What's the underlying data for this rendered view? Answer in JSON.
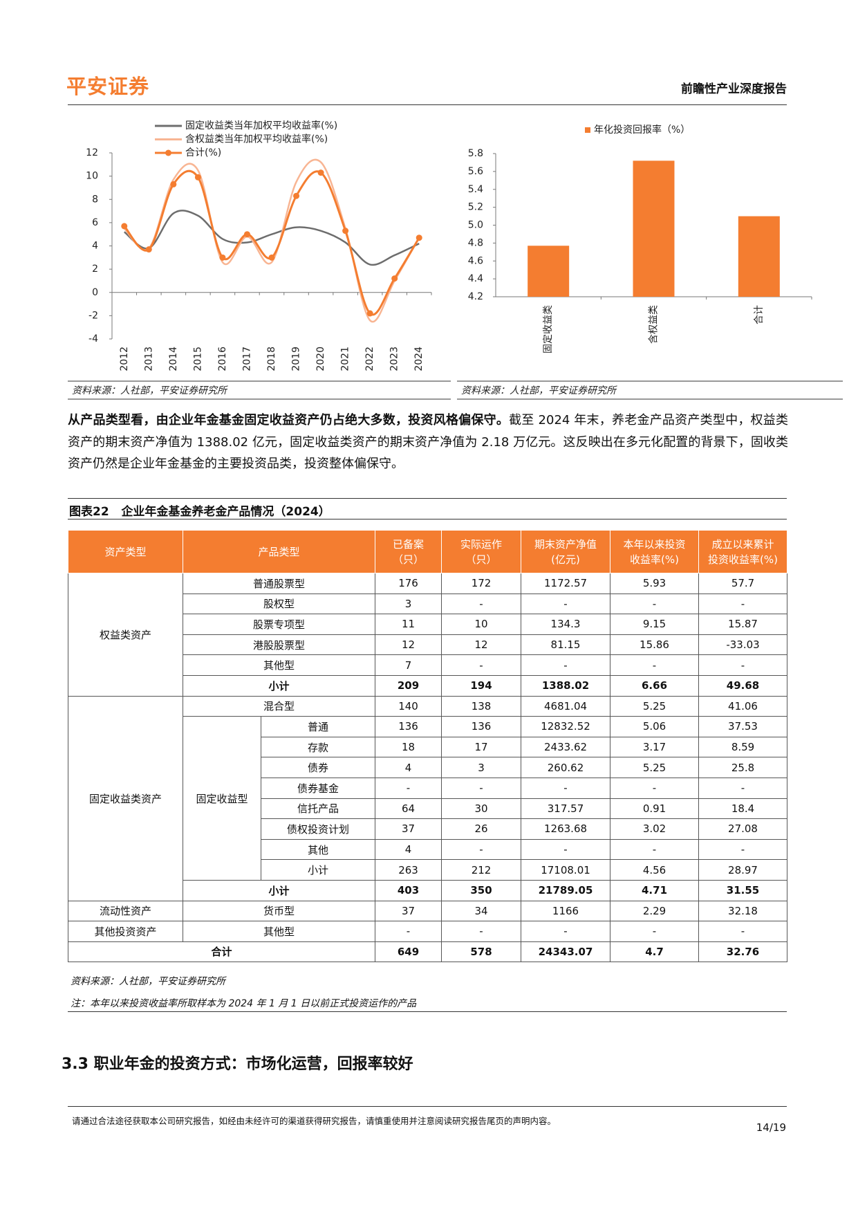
{
  "header": {
    "logo": "平安证券",
    "title": "前瞻性产业深度报告"
  },
  "chart_data": [
    {
      "type": "line",
      "categories": [
        "2012",
        "2013",
        "2014",
        "2015",
        "2016",
        "2017",
        "2018",
        "2019",
        "2020",
        "2021",
        "2022",
        "2023",
        "2024"
      ],
      "series": [
        {
          "name": "固定收益类当年加权平均收益率(%)",
          "color": "#6d6d6d",
          "values": [
            5.2,
            3.8,
            6.8,
            6.6,
            4.6,
            4.3,
            5.0,
            5.6,
            5.3,
            4.3,
            2.4,
            3.2,
            4.2
          ]
        },
        {
          "name": "含权益类当年加权平均收益率(%)",
          "color": "#f8b593",
          "values": [
            5.5,
            3.8,
            9.7,
            10.5,
            2.6,
            4.8,
            2.6,
            9.5,
            11.2,
            5.5,
            -2.4,
            1.0,
            4.7
          ]
        },
        {
          "name": "合计(%)",
          "color": "#f47d30",
          "marker": true,
          "values": [
            5.7,
            3.7,
            9.3,
            9.9,
            3.0,
            5.0,
            3.0,
            8.3,
            10.3,
            5.3,
            -1.8,
            1.2,
            4.7
          ]
        }
      ],
      "ylim": [
        -4,
        12
      ],
      "yticks": [
        -4,
        -2,
        0,
        2,
        4,
        6,
        8,
        10,
        12
      ],
      "source": "资料来源：人社部，平安证券研究所"
    },
    {
      "type": "bar",
      "categories": [
        "固定收益类",
        "含权益类",
        "合计"
      ],
      "series": [
        {
          "name": "年化投资回报率（%）",
          "color": "#f47d30",
          "values": [
            4.77,
            5.72,
            5.1
          ]
        }
      ],
      "ylim": [
        4.2,
        5.8
      ],
      "yticks": [
        4.2,
        4.4,
        4.6,
        4.8,
        {
          "value": 5,
          "label": "5.0"
        },
        5.2,
        5.4,
        5.6,
        5.8
      ],
      "source": "资料来源：人社部，平安证券研究所"
    }
  ],
  "paragraph": {
    "bold": "从产品类型看，由企业年金基金固定收益资产仍占绝大多数，投资风格偏保守。",
    "text": "截至 2024 年末，养老金产品资产类型中，权益类资产的期末资产净值为 1388.02 亿元，固定收益类资产的期末资产净值为 2.18 万亿元。这反映出在多元化配置的背景下，固收类资产仍然是企业年金基金的主要投资品类，投资整体偏保守。"
  },
  "table": {
    "label": "图表22",
    "caption": "企业年金基金养老金产品情况（2024）",
    "headers": [
      [
        "资产类型"
      ],
      [
        "产品类型"
      ],
      [
        "已备案",
        "（只）"
      ],
      [
        "实际运作",
        "（只）"
      ],
      [
        "期末资产净值",
        "(亿元)"
      ],
      [
        "本年以来投资",
        "收益率(%)"
      ],
      [
        "成立以来累计",
        "投资收益率(%)"
      ]
    ],
    "groups": [
      {
        "asset": "权益类资产",
        "items": [
          {
            "product": "普通股票型",
            "values": [
              "176",
              "172",
              "1172.57",
              "5.93",
              "57.7"
            ]
          },
          {
            "product": "股权型",
            "values": [
              "3",
              "-",
              "-",
              "-",
              "-"
            ]
          },
          {
            "product": "股票专项型",
            "values": [
              "11",
              "10",
              "134.3",
              "9.15",
              "15.87"
            ]
          },
          {
            "product": "港股股票型",
            "values": [
              "12",
              "12",
              "81.15",
              "15.86",
              "-33.03"
            ]
          },
          {
            "product": "其他型",
            "values": [
              "7",
              "-",
              "-",
              "-",
              "-"
            ]
          }
        ],
        "subtotal": {
          "label": "小计",
          "values": [
            "209",
            "194",
            "1388.02",
            "6.66",
            "49.68"
          ]
        }
      },
      {
        "asset": "固定收益类资产",
        "items": [
          {
            "product": "混合型",
            "values": [
              "140",
              "138",
              "4681.04",
              "5.25",
              "41.06"
            ]
          },
          {
            "product": "固定收益型",
            "items": [
              {
                "product": "普通",
                "values": [
                  "136",
                  "136",
                  "12832.52",
                  "5.06",
                  "37.53"
                ]
              },
              {
                "product": "存款",
                "values": [
                  "18",
                  "17",
                  "2433.62",
                  "3.17",
                  "8.59"
                ]
              },
              {
                "product": "债券",
                "values": [
                  "4",
                  "3",
                  "260.62",
                  "5.25",
                  "25.8"
                ]
              },
              {
                "product": "债券基金",
                "values": [
                  "-",
                  "-",
                  "-",
                  "-",
                  "-"
                ]
              },
              {
                "product": "信托产品",
                "values": [
                  "64",
                  "30",
                  "317.57",
                  "0.91",
                  "18.4"
                ]
              },
              {
                "product": "债权投资计划",
                "values": [
                  "37",
                  "26",
                  "1263.68",
                  "3.02",
                  "27.08"
                ]
              },
              {
                "product": "其他",
                "values": [
                  "4",
                  "-",
                  "-",
                  "-",
                  "-"
                ]
              },
              {
                "product": "小计",
                "values": [
                  "263",
                  "212",
                  "17108.01",
                  "4.56",
                  "28.97"
                ]
              }
            ]
          }
        ],
        "subtotal": {
          "label": "小计",
          "values": [
            "403",
            "350",
            "21789.05",
            "4.71",
            "31.55"
          ]
        }
      },
      {
        "asset": "流动性资产",
        "items": [
          {
            "product": "货币型",
            "values": [
              "37",
              "34",
              "1166",
              "2.29",
              "32.18"
            ]
          }
        ]
      },
      {
        "asset": "其他投资资产",
        "items": [
          {
            "product": "其他型",
            "values": [
              "-",
              "-",
              "-",
              "-",
              "-"
            ]
          }
        ]
      }
    ],
    "total": {
      "label": "合计",
      "values": [
        "649",
        "578",
        "24343.07",
        "4.7",
        "32.76"
      ]
    },
    "notes": [
      "资料来源：人社部，平安证券研究所",
      "注：本年以来投资收益率所取样本为 2024 年 1 月 1 日以前正式投资运作的产品"
    ]
  },
  "section": {
    "number": "3.3",
    "title": "职业年金的投资方式：市场化运营，回报率较好"
  },
  "footer": {
    "disclaimer": "请通过合法途径获取本公司研究报告，如经由未经许可的渠道获得研究报告，请慎重使用并注意阅读研究报告尾页的声明内容。",
    "page": "14/19"
  }
}
